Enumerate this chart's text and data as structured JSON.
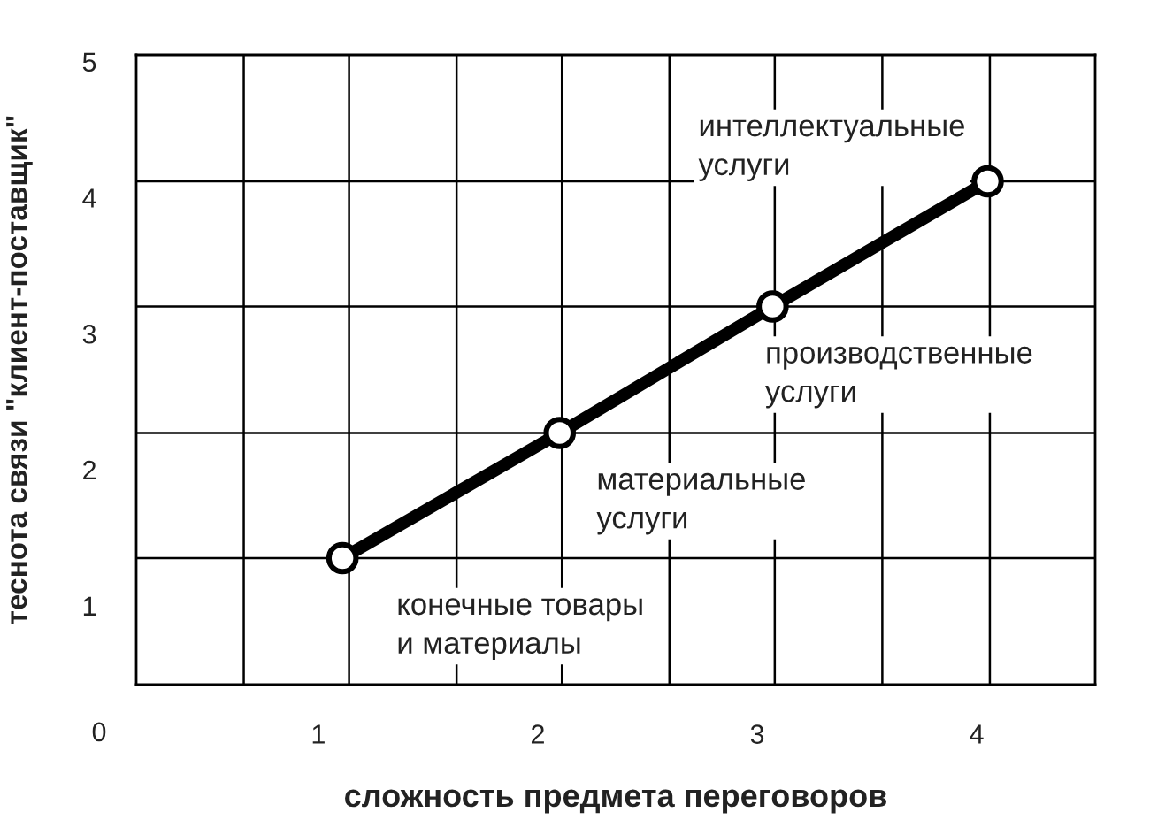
{
  "chart_data": {
    "type": "line",
    "xlabel": "сложность предмета переговоров",
    "ylabel": "теснота связи \"клиент-поставщик\"",
    "x": [
      1.11,
      2.1,
      3.07,
      4.05
    ],
    "series": [
      {
        "color": "#000000",
        "values": [
          1.35,
          2.27,
          3.2,
          4.12
        ]
      }
    ],
    "marker": "circle",
    "line_style": "solid",
    "xlim": [
      0.17,
      4.54
    ],
    "ylim": [
      0.42,
      5.05
    ],
    "xticks": [
      1,
      2,
      3,
      4
    ],
    "yticks": [
      1,
      2,
      3,
      4,
      5
    ],
    "grid": false,
    "legend": false,
    "ref_lines": [
      {
        "axis": "x",
        "value": 0.66,
        "color": "#000000"
      },
      {
        "axis": "x",
        "value": 1.14,
        "color": "#000000"
      },
      {
        "axis": "x",
        "value": 1.63,
        "color": "#000000"
      },
      {
        "axis": "x",
        "value": 2.11,
        "color": "#000000"
      },
      {
        "axis": "x",
        "value": 2.6,
        "color": "#000000"
      },
      {
        "axis": "x",
        "value": 3.08,
        "color": "#000000"
      },
      {
        "axis": "x",
        "value": 3.57,
        "color": "#000000"
      },
      {
        "axis": "x",
        "value": 4.06,
        "color": "#000000"
      },
      {
        "axis": "y",
        "value": 1.35,
        "color": "#000000"
      },
      {
        "axis": "y",
        "value": 2.27,
        "color": "#000000"
      },
      {
        "axis": "y",
        "value": 3.2,
        "color": "#000000"
      },
      {
        "axis": "y",
        "value": 4.12,
        "color": "#000000"
      }
    ],
    "annotations": [
      {
        "text": "конечные товары\nи материалы",
        "x": 1.11,
        "y": 1.35
      },
      {
        "text": "материальные\nуслуги",
        "x": 2.1,
        "y": 2.27
      },
      {
        "text": "производственные\nуслуги",
        "x": 3.07,
        "y": 3.2
      },
      {
        "text": "интеллектуальные\nуслуги",
        "x": 4.05,
        "y": 4.12
      },
      "0"
    ]
  }
}
